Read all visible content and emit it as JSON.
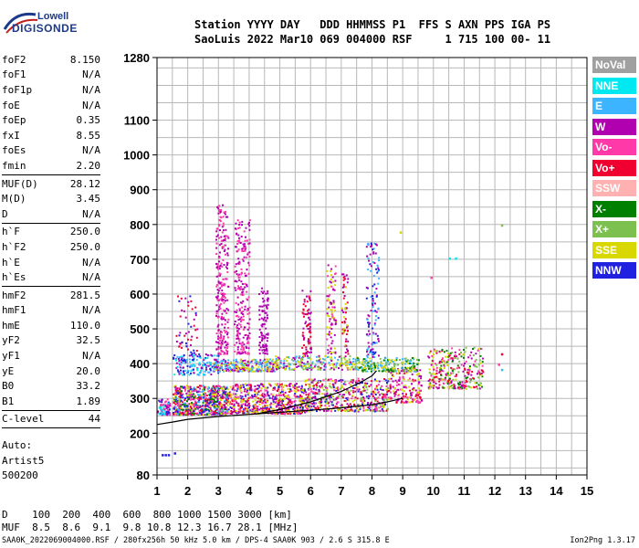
{
  "logo": {
    "line1": "Lowell",
    "line2": "DIGISONDE"
  },
  "header": {
    "line1": "Station YYYY DAY   DDD HHMMSS P1  FFS S AXN PPS IGA PS",
    "line2": "SaoLuis 2022 Mar10 069 004000 RSF     1 715 100 00- 11"
  },
  "params_group1": [
    {
      "name": "foF2",
      "value": "8.150"
    },
    {
      "name": "foF1",
      "value": "N/A"
    },
    {
      "name": "foF1p",
      "value": "N/A"
    },
    {
      "name": "foE",
      "value": "N/A"
    },
    {
      "name": "foEp",
      "value": "0.35"
    },
    {
      "name": "fxI",
      "value": "8.55"
    },
    {
      "name": "foEs",
      "value": "N/A"
    },
    {
      "name": "fmin",
      "value": "2.20"
    }
  ],
  "params_group2": [
    {
      "name": "MUF(D)",
      "value": "28.12"
    },
    {
      "name": "M(D)",
      "value": "3.45"
    },
    {
      "name": "D",
      "value": "N/A"
    }
  ],
  "params_group3": [
    {
      "name": "h`F",
      "value": "250.0"
    },
    {
      "name": "h`F2",
      "value": "250.0"
    },
    {
      "name": "h`E",
      "value": "N/A"
    },
    {
      "name": "h`Es",
      "value": "N/A"
    }
  ],
  "params_group4": [
    {
      "name": "hmF2",
      "value": "281.5"
    },
    {
      "name": "hmF1",
      "value": "N/A"
    },
    {
      "name": "hmE",
      "value": "110.0"
    },
    {
      "name": "yF2",
      "value": "32.5"
    },
    {
      "name": "yF1",
      "value": "N/A"
    },
    {
      "name": "yE",
      "value": "20.0"
    },
    {
      "name": "B0",
      "value": "33.2"
    },
    {
      "name": "B1",
      "value": "1.89"
    }
  ],
  "clevel": {
    "name": "C-level",
    "value": "44"
  },
  "autoscaling": {
    "line1": "Auto:",
    "line2": "Artist5",
    "line3": "500200"
  },
  "legend": [
    {
      "label": "NoVal",
      "color": "#a0a0a0"
    },
    {
      "label": "NNE",
      "color": "#00e8f0"
    },
    {
      "label": "E",
      "color": "#3cb4ff"
    },
    {
      "label": "W",
      "color": "#b000b0"
    },
    {
      "label": "Vo-",
      "color": "#ff3aa8"
    },
    {
      "label": "Vo+",
      "color": "#f00030"
    },
    {
      "label": "SSW",
      "color": "#ffb0b0"
    },
    {
      "label": "X-",
      "color": "#008000"
    },
    {
      "label": "X+",
      "color": "#7cc050"
    },
    {
      "label": "SSE",
      "color": "#d8d800"
    },
    {
      "label": "NNW",
      "color": "#2020e0"
    }
  ],
  "distance_table": {
    "d_line": "D    100  200  400  600  800 1000 1500 3000 [km]",
    "muf_line": "MUF  8.5  8.6  9.1  9.8 10.8 12.3 16.7 28.1 [MHz]"
  },
  "footer": {
    "left": "SAA0K_2022069004000.RSF / 280fx256h 50 kHz 5.0 km / DPS-4 SAA0K 903 / 2.6 S 315.8 E",
    "right": "Ion2Png 1.3.17"
  },
  "chart_data": {
    "type": "scatter",
    "title": "",
    "xlabel": "",
    "ylabel": "",
    "xlim": [
      1,
      15
    ],
    "ylim": [
      80,
      1280
    ],
    "x_ticks": [
      1,
      2,
      3,
      4,
      5,
      6,
      7,
      8,
      9,
      10,
      11,
      12,
      13,
      14,
      15
    ],
    "y_ticks": [
      80,
      200,
      300,
      400,
      500,
      600,
      700,
      800,
      900,
      1000,
      1100,
      1280
    ],
    "grid": true,
    "traces": [
      {
        "name": "lower-trace",
        "color": "#000000",
        "x": [
          1.0,
          1.5,
          2.0,
          3.0,
          4.0,
          5.0,
          6.0,
          7.0,
          8.0,
          8.5,
          9.0
        ],
        "y": [
          225,
          232,
          240,
          248,
          254,
          260,
          266,
          273,
          282,
          290,
          300
        ]
      },
      {
        "name": "profile-trace",
        "color": "#000000",
        "x": [
          4.2,
          5.0,
          6.0,
          7.0,
          7.6,
          8.0,
          8.15
        ],
        "y": [
          255,
          268,
          290,
          320,
          345,
          365,
          380
        ]
      }
    ],
    "echo_clusters": [
      {
        "x": [
          1.0,
          1.4
        ],
        "y": [
          255,
          300
        ],
        "n": 80,
        "colors": [
          "#2020e0",
          "#ff3aa8",
          "#b000b0",
          "#00e8f0"
        ]
      },
      {
        "x": [
          1.5,
          3.3
        ],
        "y": [
          255,
          340
        ],
        "n": 700,
        "colors": [
          "#b000b0",
          "#ff3aa8",
          "#f00030",
          "#2020e0",
          "#3cb4ff",
          "#d8d800",
          "#008000"
        ]
      },
      {
        "x": [
          3.3,
          5.8
        ],
        "y": [
          258,
          345
        ],
        "n": 600,
        "colors": [
          "#b000b0",
          "#ff3aa8",
          "#f00030",
          "#2020e0",
          "#d8d800"
        ]
      },
      {
        "x": [
          5.8,
          8.5
        ],
        "y": [
          265,
          360
        ],
        "n": 500,
        "colors": [
          "#ff3aa8",
          "#f00030",
          "#b000b0",
          "#d8d800",
          "#2020e0",
          "#7cc050"
        ]
      },
      {
        "x": [
          8.5,
          9.6
        ],
        "y": [
          290,
          390
        ],
        "n": 180,
        "colors": [
          "#ff3aa8",
          "#f00030",
          "#d8d800",
          "#b000b0"
        ]
      },
      {
        "x": [
          9.8,
          11.6
        ],
        "y": [
          330,
          450
        ],
        "n": 300,
        "colors": [
          "#ff3aa8",
          "#f00030",
          "#b000b0",
          "#d8d800",
          "#7cc050",
          "#008000"
        ]
      },
      {
        "x": [
          1.5,
          3.0
        ],
        "y": [
          370,
          430
        ],
        "n": 160,
        "colors": [
          "#b000b0",
          "#3cb4ff",
          "#2020e0",
          "#00e8f0"
        ]
      },
      {
        "x": [
          2.8,
          4.8
        ],
        "y": [
          380,
          415
        ],
        "n": 260,
        "colors": [
          "#b000b0",
          "#d8d800",
          "#3cb4ff"
        ]
      },
      {
        "x": [
          4.8,
          7.5
        ],
        "y": [
          385,
          425
        ],
        "n": 240,
        "colors": [
          "#d8d800",
          "#7cc050",
          "#b000b0",
          "#3cb4ff"
        ]
      },
      {
        "x": [
          7.5,
          9.5
        ],
        "y": [
          380,
          420
        ],
        "n": 200,
        "colors": [
          "#d8d800",
          "#7cc050",
          "#3cb4ff",
          "#008000"
        ]
      },
      {
        "x": [
          2.9,
          3.3
        ],
        "y": [
          430,
          860
        ],
        "n": 260,
        "colors": [
          "#b000b0",
          "#ff3aa8"
        ]
      },
      {
        "x": [
          3.5,
          4.0
        ],
        "y": [
          430,
          820
        ],
        "n": 230,
        "colors": [
          "#b000b0",
          "#ff3aa8"
        ]
      },
      {
        "x": [
          4.3,
          4.6
        ],
        "y": [
          430,
          620
        ],
        "n": 90,
        "colors": [
          "#b000b0"
        ]
      },
      {
        "x": [
          5.7,
          6.0
        ],
        "y": [
          430,
          620
        ],
        "n": 70,
        "colors": [
          "#b000b0",
          "#f00030"
        ]
      },
      {
        "x": [
          6.5,
          6.8
        ],
        "y": [
          430,
          690
        ],
        "n": 90,
        "colors": [
          "#b000b0",
          "#ff3aa8",
          "#d8d800"
        ]
      },
      {
        "x": [
          7.0,
          7.2
        ],
        "y": [
          430,
          660
        ],
        "n": 60,
        "colors": [
          "#b000b0",
          "#f00030",
          "#d8d800"
        ]
      },
      {
        "x": [
          7.8,
          8.2
        ],
        "y": [
          420,
          750
        ],
        "n": 120,
        "colors": [
          "#b000b0",
          "#2020e0",
          "#3cb4ff"
        ]
      },
      {
        "x": [
          1.6,
          2.3
        ],
        "y": [
          430,
          600
        ],
        "n": 50,
        "colors": [
          "#b000b0",
          "#2020e0",
          "#f00030"
        ]
      }
    ],
    "isolated_points": [
      {
        "x": 1.15,
        "y": 140,
        "color": "#2020e0"
      },
      {
        "x": 1.25,
        "y": 140,
        "color": "#2020e0"
      },
      {
        "x": 1.35,
        "y": 140,
        "color": "#2020e0"
      },
      {
        "x": 1.55,
        "y": 145,
        "color": "#2020e0"
      },
      {
        "x": 10.5,
        "y": 705,
        "color": "#00e8f0"
      },
      {
        "x": 10.7,
        "y": 705,
        "color": "#00e8f0"
      },
      {
        "x": 9.9,
        "y": 650,
        "color": "#ff3aa8"
      },
      {
        "x": 12.2,
        "y": 800,
        "color": "#7cc050"
      },
      {
        "x": 12.2,
        "y": 430,
        "color": "#f00030"
      },
      {
        "x": 12.2,
        "y": 385,
        "color": "#3cb4ff"
      },
      {
        "x": 12.1,
        "y": 400,
        "color": "#ff3aa8"
      },
      {
        "x": 8.9,
        "y": 780,
        "color": "#d8d800"
      }
    ]
  }
}
